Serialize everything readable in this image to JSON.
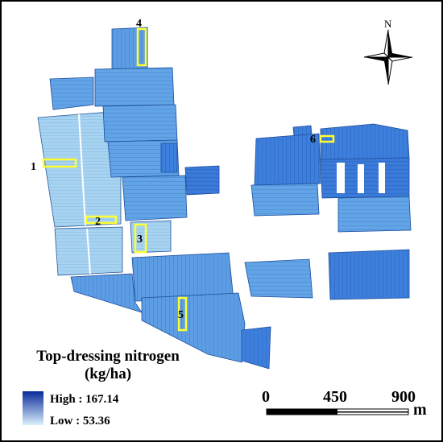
{
  "legend": {
    "title_line1": "Top-dressing nitrogen",
    "title_line2": "(kg/ha)",
    "high_label": "High : 167.14",
    "low_label": "Low : 53.36",
    "high_color": "#0a2a9c",
    "low_color": "#d9f0fb"
  },
  "scale_bar": {
    "ticks": [
      "0",
      "450",
      "900"
    ],
    "unit": "m"
  },
  "north_arrow": {
    "label": "N"
  },
  "plots": [
    {
      "id": "1",
      "label": "1"
    },
    {
      "id": "2",
      "label": "2"
    },
    {
      "id": "3",
      "label": "3"
    },
    {
      "id": "4",
      "label": "4"
    },
    {
      "id": "5",
      "label": "5"
    },
    {
      "id": "6",
      "label": "6"
    }
  ],
  "colors": {
    "highlight": "#ffff33",
    "field_light": "#a9d4f2",
    "field_mid": "#5a9fe6",
    "field_dark": "#2e6fd0",
    "field_darkest": "#0f3aa8"
  }
}
